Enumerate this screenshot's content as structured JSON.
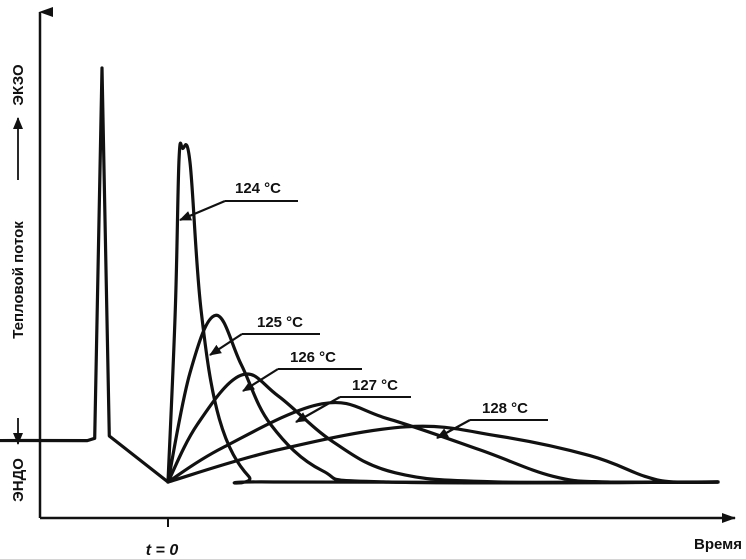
{
  "chart_data": {
    "type": "line",
    "xlabel": "Время",
    "ylabel": {
      "endo": "ЭНДО",
      "middle": "Тепловой поток",
      "exo": "ЭКЗО"
    },
    "x_tick_label": "t = 0",
    "grid": false,
    "legend": "none",
    "baseline_pre_start": {
      "points": [
        [
          -0.92,
          0.37
        ],
        [
          -0.8,
          0.35
        ],
        [
          -0.68,
          0.38
        ],
        [
          -0.6,
          0.35
        ],
        [
          -0.55,
          0.36
        ],
        [
          -0.22,
          0.36
        ],
        [
          -0.2,
          0.38
        ],
        [
          -0.18,
          3.6
        ],
        [
          -0.16,
          0.4
        ],
        [
          0.0,
          0.0
        ]
      ]
    },
    "series": [
      {
        "name": "124 °C",
        "color": "#111111",
        "points": [
          [
            0.0,
            0.0
          ],
          [
            0.02,
            1.5
          ],
          [
            0.03,
            2.8
          ],
          [
            0.04,
            2.9
          ],
          [
            0.06,
            2.78
          ],
          [
            0.09,
            1.5
          ],
          [
            0.14,
            0.55
          ],
          [
            0.22,
            0.05
          ],
          [
            0.3,
            0.0
          ],
          [
            1.5,
            0.0
          ]
        ]
      },
      {
        "name": "125 °C",
        "color": "#111111",
        "points": [
          [
            0.0,
            0.0
          ],
          [
            0.06,
            0.95
          ],
          [
            0.13,
            1.45
          ],
          [
            0.2,
            1.02
          ],
          [
            0.28,
            0.5
          ],
          [
            0.42,
            0.1
          ],
          [
            0.6,
            0.0
          ],
          [
            1.5,
            0.0
          ]
        ]
      },
      {
        "name": "126 °C",
        "color": "#111111",
        "points": [
          [
            0.0,
            0.0
          ],
          [
            0.08,
            0.5
          ],
          [
            0.2,
            0.93
          ],
          [
            0.3,
            0.75
          ],
          [
            0.45,
            0.35
          ],
          [
            0.62,
            0.08
          ],
          [
            0.9,
            0.0
          ],
          [
            1.5,
            0.0
          ]
        ]
      },
      {
        "name": "127 °C",
        "color": "#111111",
        "points": [
          [
            0.0,
            0.0
          ],
          [
            0.15,
            0.3
          ],
          [
            0.42,
            0.68
          ],
          [
            0.6,
            0.55
          ],
          [
            0.85,
            0.28
          ],
          [
            1.05,
            0.05
          ],
          [
            1.2,
            0.0
          ],
          [
            1.5,
            0.0
          ]
        ]
      },
      {
        "name": "128 °C",
        "color": "#111111",
        "points": [
          [
            0.0,
            0.0
          ],
          [
            0.3,
            0.28
          ],
          [
            0.65,
            0.48
          ],
          [
            0.9,
            0.4
          ],
          [
            1.15,
            0.23
          ],
          [
            1.3,
            0.05
          ],
          [
            1.38,
            0.0
          ],
          [
            1.5,
            0.0
          ]
        ]
      }
    ],
    "annotations": [
      {
        "text": "124 °C",
        "series": "124 °C"
      },
      {
        "text": "125 °C",
        "series": "125 °C"
      },
      {
        "text": "126 °C",
        "series": "126 °C"
      },
      {
        "text": "127 °C",
        "series": "127 °C"
      },
      {
        "text": "128 °C",
        "series": "128 °C"
      }
    ]
  }
}
